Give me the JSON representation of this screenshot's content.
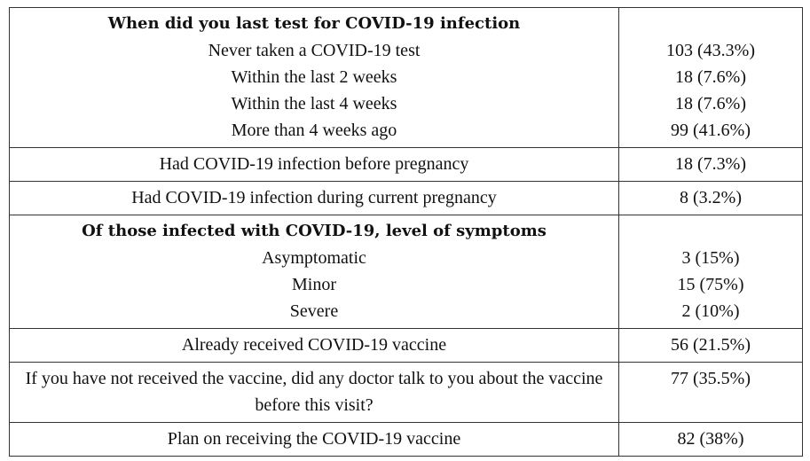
{
  "table": {
    "sections": [
      {
        "heading": "When did you last test for COVID-19 infection",
        "items": [
          {
            "label": "Never taken a COVID-19 test",
            "value": "103 (43.3%)"
          },
          {
            "label": "Within the last 2 weeks",
            "value": "18 (7.6%)"
          },
          {
            "label": "Within the last 4 weeks",
            "value": "18 (7.6%)"
          },
          {
            "label": "More than 4 weeks ago",
            "value": "99 (41.6%)"
          }
        ]
      },
      {
        "items": [
          {
            "label": "Had COVID-19 infection before pregnancy",
            "value": "18 (7.3%)"
          }
        ]
      },
      {
        "items": [
          {
            "label": "Had COVID-19 infection during current pregnancy",
            "value": "8 (3.2%)"
          }
        ]
      },
      {
        "heading": "Of those infected with COVID-19, level of symptoms",
        "items": [
          {
            "label": "Asymptomatic",
            "value": "3 (15%)"
          },
          {
            "label": "Minor",
            "value": "15 (75%)"
          },
          {
            "label": "Severe",
            "value": "2 (10%)"
          }
        ]
      },
      {
        "items": [
          {
            "label": "Already received COVID-19 vaccine",
            "value": "56 (21.5%)"
          }
        ]
      },
      {
        "items": [
          {
            "label": "If you have not received the vaccine, did any doctor talk to you about the vaccine before this visit?",
            "value": "77 (35.5%)"
          }
        ]
      },
      {
        "items": [
          {
            "label": "Plan on receiving the COVID-19 vaccine",
            "value": "82 (38%)"
          }
        ]
      }
    ]
  }
}
